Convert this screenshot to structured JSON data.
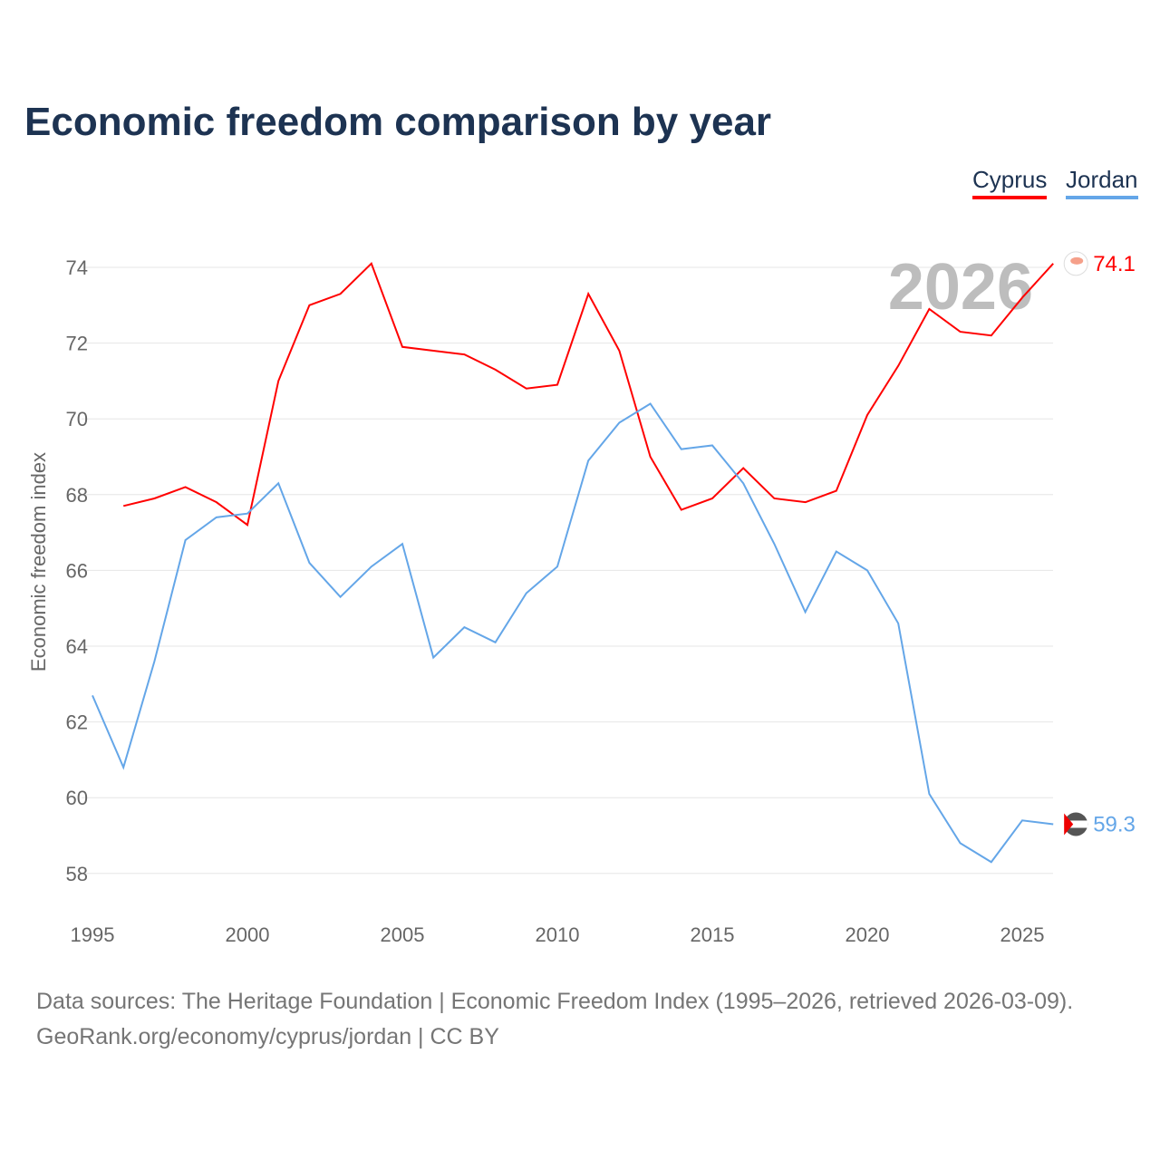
{
  "chart_data": {
    "type": "line",
    "title": "Economic freedom comparison by year",
    "xlabel": "",
    "ylabel": "Economic freedom index",
    "xlim": [
      1995,
      2026
    ],
    "ylim": [
      57,
      75
    ],
    "xticks": [
      1995,
      2000,
      2005,
      2010,
      2015,
      2020,
      2025
    ],
    "yticks": [
      58,
      60,
      62,
      64,
      66,
      68,
      70,
      72,
      74
    ],
    "grid": true,
    "legend": "top-right",
    "year_label": "2026",
    "series": [
      {
        "name": "Cyprus",
        "color": "#ff0000",
        "end_label": "74.1",
        "flag": "cyprus-flag",
        "x": [
          1996,
          1997,
          1998,
          1999,
          2000,
          2001,
          2002,
          2003,
          2004,
          2005,
          2006,
          2007,
          2008,
          2009,
          2010,
          2011,
          2012,
          2013,
          2014,
          2015,
          2016,
          2017,
          2018,
          2019,
          2020,
          2021,
          2022,
          2023,
          2024,
          2025,
          2026
        ],
        "values": [
          67.7,
          67.9,
          68.2,
          67.8,
          67.2,
          71.0,
          73.0,
          73.3,
          74.1,
          71.9,
          71.8,
          71.7,
          71.3,
          70.8,
          70.9,
          73.3,
          71.8,
          69.0,
          67.6,
          67.9,
          68.7,
          67.9,
          67.8,
          68.1,
          70.1,
          71.4,
          72.9,
          72.3,
          72.2,
          73.2,
          74.1
        ]
      },
      {
        "name": "Jordan",
        "color": "#64a6e8",
        "end_label": "59.3",
        "flag": "jordan-flag",
        "x": [
          1995,
          1996,
          1997,
          1998,
          1999,
          2000,
          2001,
          2002,
          2003,
          2004,
          2005,
          2006,
          2007,
          2008,
          2009,
          2010,
          2011,
          2012,
          2013,
          2014,
          2015,
          2016,
          2017,
          2018,
          2019,
          2020,
          2021,
          2022,
          2023,
          2024,
          2025,
          2026
        ],
        "values": [
          62.7,
          60.8,
          63.6,
          66.8,
          67.4,
          67.5,
          68.3,
          66.2,
          65.3,
          66.1,
          66.7,
          63.7,
          64.5,
          64.1,
          65.4,
          66.1,
          68.9,
          69.9,
          70.4,
          69.2,
          69.3,
          68.3,
          66.7,
          64.9,
          66.5,
          66.0,
          64.6,
          60.1,
          58.8,
          58.3,
          59.4,
          59.3
        ]
      }
    ]
  },
  "source": {
    "line1": "Data sources: The Heritage Foundation | Economic Freedom Index (1995–2026, retrieved 2026-03-09).",
    "line2": "GeoRank.org/economy/cyprus/jordan | CC BY"
  }
}
